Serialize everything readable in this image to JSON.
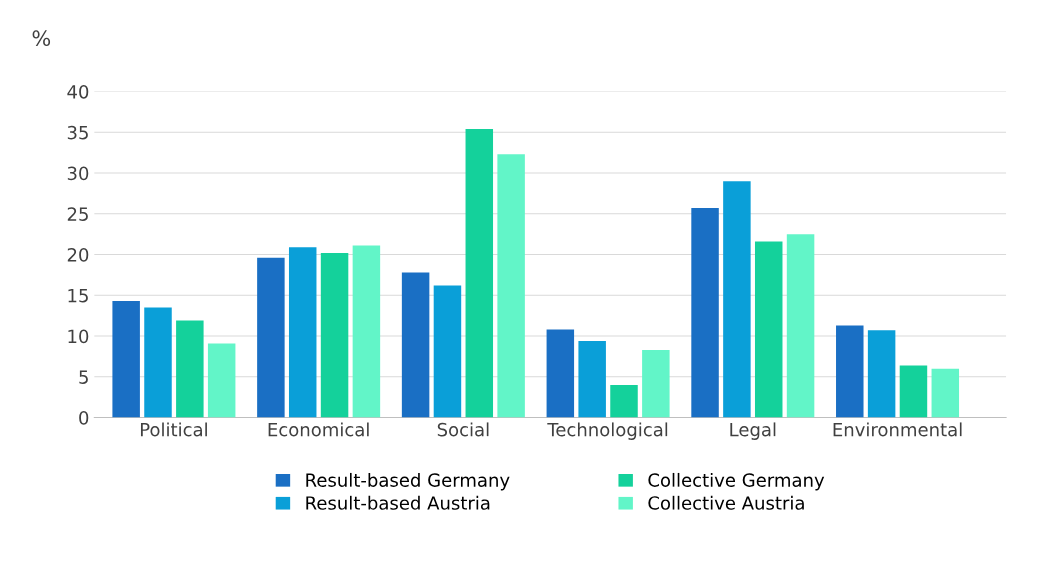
{
  "chart_data": {
    "type": "bar",
    "ylabel": "%",
    "categories": [
      "Political",
      "Economical",
      "Social",
      "Technological",
      "Legal",
      "Environmental"
    ],
    "series": [
      {
        "name": "Result-based Germany",
        "color": "#1a6fc4",
        "values": [
          14.3,
          19.6,
          17.8,
          10.8,
          25.7,
          11.3
        ]
      },
      {
        "name": "Result-based Austria",
        "color": "#0a9fd8",
        "values": [
          13.5,
          20.9,
          16.2,
          9.4,
          29.0,
          10.7
        ]
      },
      {
        "name": "Collective Germany",
        "color": "#14d19b",
        "values": [
          11.9,
          20.2,
          35.4,
          4.0,
          21.6,
          6.4
        ]
      },
      {
        "name": "Collective Austria",
        "color": "#62f5c8",
        "values": [
          9.1,
          21.1,
          32.3,
          8.3,
          22.5,
          6.0
        ]
      }
    ],
    "ylim": [
      0,
      40
    ],
    "yticks": [
      0,
      5,
      10,
      15,
      20,
      25,
      30,
      35,
      40
    ],
    "grid": "y",
    "legend": "bottom"
  }
}
